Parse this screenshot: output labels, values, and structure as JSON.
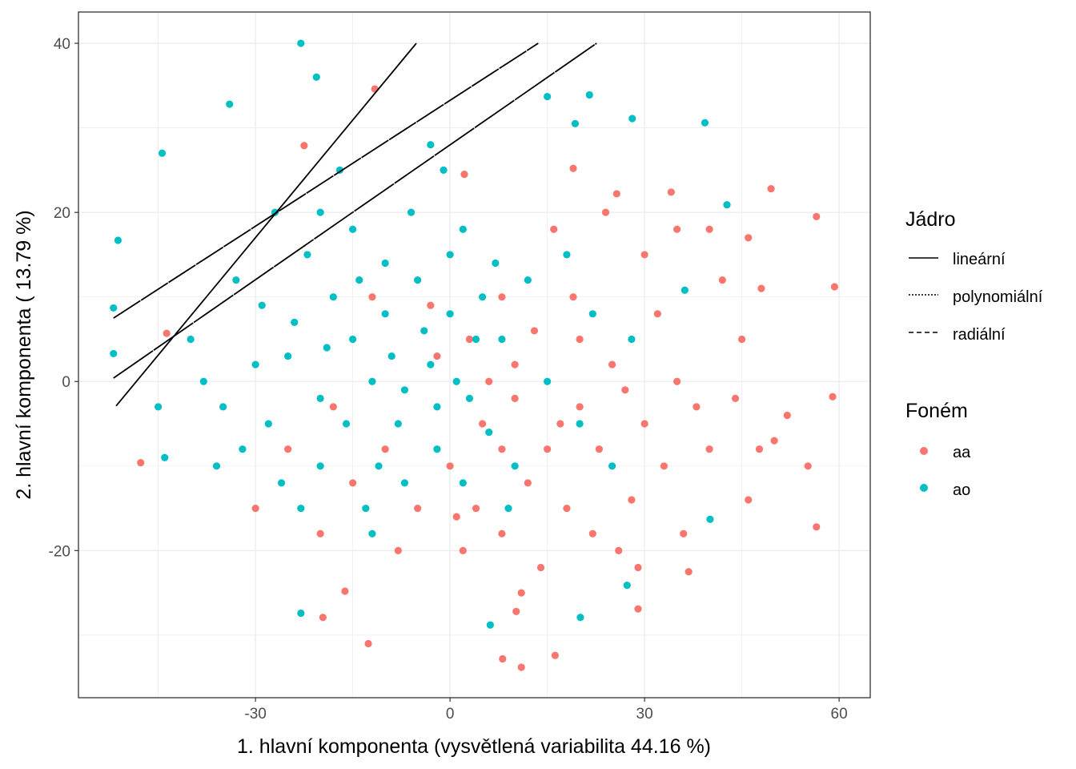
{
  "chart_data": {
    "type": "scatter",
    "xlabel": "1. hlavní komponenta (vysvětlená variabilita 44.16 %)",
    "ylabel": "2. hlavní komponenta ( 13.79 %)",
    "xlim": [
      -57.3,
      64.8
    ],
    "ylim": [
      -37.4,
      43.7
    ],
    "x_ticks": [
      -30,
      0,
      30,
      60
    ],
    "y_ticks": [
      -20,
      0,
      20,
      40
    ],
    "x_tick_labels": [
      "-30",
      "0",
      "30",
      "60"
    ],
    "y_tick_labels": [
      "-20",
      "0",
      "20",
      "40"
    ],
    "grid": true,
    "legend_placement": "right",
    "legends": [
      {
        "title": "Jádro",
        "entries": [
          {
            "label": "lineární",
            "linetype": "solid"
          },
          {
            "label": "polynomiální",
            "linetype": "dotted"
          },
          {
            "label": "radiální",
            "linetype": "dashed"
          }
        ]
      },
      {
        "title": "Foném",
        "entries": [
          {
            "label": "aa",
            "color": "#F8766D"
          },
          {
            "label": "ao",
            "color": "#00BFC4"
          }
        ]
      }
    ],
    "lines": [
      {
        "name": "lineární",
        "points": [
          [
            -51.5,
            -2.9
          ],
          [
            -5.2,
            40
          ]
        ]
      },
      {
        "name": "polynomiální",
        "points": [
          [
            -51.9,
            7.5
          ],
          [
            13.6,
            40
          ]
        ]
      },
      {
        "name": "radiální",
        "points": [
          [
            -51.9,
            0.4
          ],
          [
            22.6,
            40
          ]
        ]
      }
    ],
    "series": [
      {
        "name": "aa",
        "color": "#F8766D",
        "points": [
          [
            -11.6,
            34.6
          ],
          [
            -22.5,
            27.9
          ],
          [
            59.3,
            11.2
          ],
          [
            59,
            -1.8
          ],
          [
            56.5,
            19.5
          ],
          [
            49.5,
            22.8
          ],
          [
            56.5,
            -17.2
          ],
          [
            11,
            -33.8
          ],
          [
            8.1,
            -32.8
          ],
          [
            16.2,
            -32.4
          ],
          [
            -12.6,
            -31
          ],
          [
            10.2,
            -27.2
          ],
          [
            29,
            -26.9
          ],
          [
            36.8,
            -22.5
          ],
          [
            55.2,
            -10
          ],
          [
            47.7,
            -8
          ],
          [
            34.1,
            22.4
          ],
          [
            25.7,
            22.2
          ],
          [
            19,
            25.2
          ],
          [
            2.2,
            24.5
          ],
          [
            -43.7,
            5.7
          ],
          [
            -47.7,
            -9.6
          ],
          [
            -19.6,
            -27.9
          ],
          [
            -16.2,
            -24.8
          ],
          [
            5,
            -5
          ],
          [
            10,
            -2
          ],
          [
            15,
            -8
          ],
          [
            20,
            -3
          ],
          [
            25,
            2
          ],
          [
            30,
            -5
          ],
          [
            35,
            0
          ],
          [
            40,
            -8
          ],
          [
            45,
            5
          ],
          [
            50,
            -7
          ],
          [
            3,
            5
          ],
          [
            8,
            10
          ],
          [
            12,
            -12
          ],
          [
            18,
            -15
          ],
          [
            22,
            -18
          ],
          [
            28,
            -14
          ],
          [
            33,
            -10
          ],
          [
            38,
            -3
          ],
          [
            42,
            12
          ],
          [
            30,
            15
          ],
          [
            24,
            20
          ],
          [
            16,
            18
          ],
          [
            10,
            2
          ],
          [
            0,
            -10
          ],
          [
            -5,
            -15
          ],
          [
            -10,
            -8
          ],
          [
            -15,
            -12
          ],
          [
            -20,
            -18
          ],
          [
            -25,
            -8
          ],
          [
            -30,
            -15
          ],
          [
            2,
            -20
          ],
          [
            8,
            -18
          ],
          [
            14,
            -22
          ],
          [
            26,
            -20
          ],
          [
            36,
            -18
          ],
          [
            46,
            -14
          ],
          [
            52,
            -4
          ],
          [
            44,
            -2
          ],
          [
            32,
            8
          ],
          [
            20,
            5
          ],
          [
            -2,
            3
          ],
          [
            6,
            0
          ],
          [
            13,
            6
          ],
          [
            27,
            -1
          ],
          [
            17,
            -5
          ],
          [
            11,
            -25
          ],
          [
            4,
            -15
          ],
          [
            -8,
            -20
          ],
          [
            -18,
            -3
          ],
          [
            35,
            18
          ],
          [
            40,
            18
          ],
          [
            46,
            17
          ],
          [
            48,
            11
          ],
          [
            19,
            10
          ],
          [
            23,
            -8
          ],
          [
            -12,
            10
          ],
          [
            -3,
            9
          ],
          [
            8,
            -8
          ],
          [
            29,
            -22
          ],
          [
            1,
            -16
          ]
        ]
      },
      {
        "name": "ao",
        "color": "#00BFC4",
        "points": [
          [
            -23,
            40
          ],
          [
            -20.6,
            36
          ],
          [
            -34,
            32.8
          ],
          [
            -44.4,
            27
          ],
          [
            -51.2,
            16.7
          ],
          [
            -51.9,
            8.7
          ],
          [
            -51.9,
            3.3
          ],
          [
            -23,
            -27.4
          ],
          [
            6.2,
            -28.8
          ],
          [
            20.1,
            -27.9
          ],
          [
            39.3,
            30.6
          ],
          [
            19.3,
            30.5
          ],
          [
            21.5,
            33.9
          ],
          [
            28.1,
            31.1
          ],
          [
            40.1,
            -16.3
          ],
          [
            27.3,
            -24.1
          ],
          [
            42.7,
            20.9
          ],
          [
            36.2,
            10.8
          ],
          [
            15,
            33.7
          ],
          [
            -25,
            3
          ],
          [
            -20,
            -2
          ],
          [
            -15,
            5
          ],
          [
            -10,
            8
          ],
          [
            -5,
            12
          ],
          [
            0,
            15
          ],
          [
            -3,
            2
          ],
          [
            -8,
            -5
          ],
          [
            -12,
            0
          ],
          [
            -18,
            10
          ],
          [
            -28,
            -5
          ],
          [
            -30,
            2
          ],
          [
            -35,
            -3
          ],
          [
            -22,
            15
          ],
          [
            -15,
            18
          ],
          [
            -6,
            20
          ],
          [
            2,
            18
          ],
          [
            5,
            10
          ],
          [
            8,
            5
          ],
          [
            3,
            -2
          ],
          [
            -2,
            -8
          ],
          [
            -7,
            -12
          ],
          [
            -13,
            -15
          ],
          [
            -20,
            -10
          ],
          [
            -26,
            -12
          ],
          [
            -32,
            -8
          ],
          [
            -38,
            0
          ],
          [
            -40,
            5
          ],
          [
            -33,
            12
          ],
          [
            -27,
            20
          ],
          [
            -17,
            25
          ],
          [
            -10,
            14
          ],
          [
            -4,
            6
          ],
          [
            1,
            0
          ],
          [
            6,
            -6
          ],
          [
            10,
            -10
          ],
          [
            15,
            0
          ],
          [
            12,
            12
          ],
          [
            18,
            15
          ],
          [
            22,
            8
          ],
          [
            -1,
            25
          ],
          [
            -12,
            -18
          ],
          [
            -23,
            -15
          ],
          [
            -36,
            -10
          ],
          [
            -45,
            -3
          ],
          [
            -44,
            -9
          ],
          [
            -16,
            -5
          ],
          [
            -9,
            3
          ],
          [
            4,
            5
          ],
          [
            -2,
            -3
          ],
          [
            -24,
            7
          ],
          [
            -14,
            12
          ],
          [
            -7,
            -1
          ],
          [
            -19,
            4
          ],
          [
            -29,
            9
          ],
          [
            0,
            8
          ],
          [
            7,
            14
          ],
          [
            -11,
            -10
          ],
          [
            2,
            -12
          ],
          [
            9,
            -15
          ],
          [
            20,
            -5
          ],
          [
            25,
            -10
          ],
          [
            28,
            5
          ],
          [
            -3,
            28
          ],
          [
            -20,
            20
          ]
        ]
      }
    ]
  }
}
